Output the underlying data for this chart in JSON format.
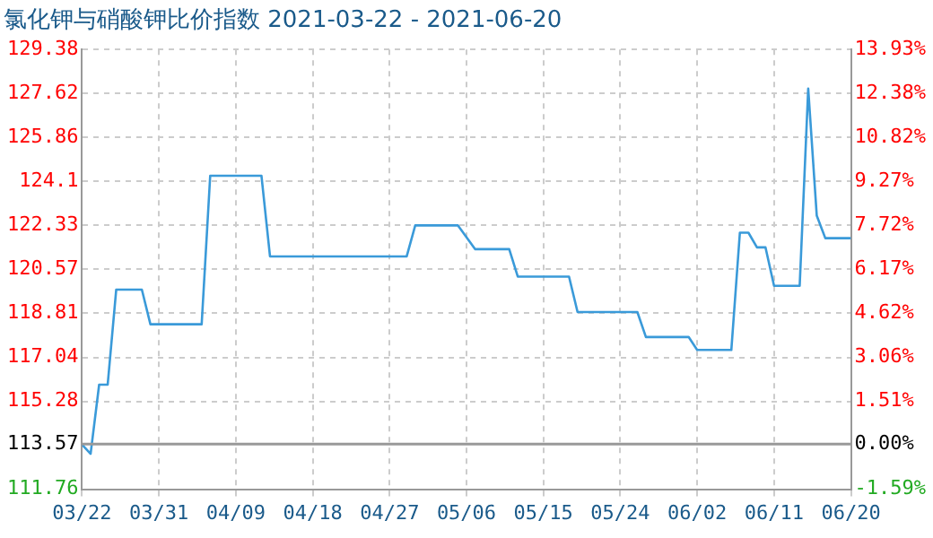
{
  "chart_data": {
    "type": "line",
    "title": "氯化钾与硝酸钾比价指数 2021-03-22 - 2021-06-20",
    "x": [
      "2021-03-22",
      "2021-03-23",
      "2021-03-24",
      "2021-03-25",
      "2021-03-26",
      "2021-03-29",
      "2021-03-30",
      "2021-04-05",
      "2021-04-06",
      "2021-04-12",
      "2021-04-13",
      "2021-04-29",
      "2021-04-30",
      "2021-05-05",
      "2021-05-07",
      "2021-05-11",
      "2021-05-12",
      "2021-05-18",
      "2021-05-19",
      "2021-05-26",
      "2021-05-27",
      "2021-06-01",
      "2021-06-02",
      "2021-06-06",
      "2021-06-07",
      "2021-06-08",
      "2021-06-09",
      "2021-06-10",
      "2021-06-11",
      "2021-06-14",
      "2021-06-15",
      "2021-06-16",
      "2021-06-17",
      "2021-06-20"
    ],
    "series": [
      {
        "color": "#3a9ad9",
        "values": [
          113.55,
          113.18,
          115.95,
          115.95,
          119.76,
          119.76,
          118.37,
          118.37,
          124.32,
          124.32,
          121.09,
          121.09,
          122.33,
          122.33,
          121.38,
          121.38,
          120.28,
          120.28,
          118.86,
          118.86,
          117.86,
          117.86,
          117.34,
          117.34,
          122.04,
          122.04,
          121.45,
          121.45,
          119.91,
          119.91,
          127.81,
          122.72,
          121.82,
          121.82
        ]
      }
    ],
    "xlim": [
      "2021-03-22",
      "2021-06-20"
    ],
    "xticks": [
      {
        "value": "2021-03-22",
        "label": "03/22"
      },
      {
        "value": "2021-03-31",
        "label": "03/31"
      },
      {
        "value": "2021-04-09",
        "label": "04/09"
      },
      {
        "value": "2021-04-18",
        "label": "04/18"
      },
      {
        "value": "2021-04-27",
        "label": "04/27"
      },
      {
        "value": "2021-05-06",
        "label": "05/06"
      },
      {
        "value": "2021-05-15",
        "label": "05/15"
      },
      {
        "value": "2021-05-24",
        "label": "05/24"
      },
      {
        "value": "2021-06-02",
        "label": "06/02"
      },
      {
        "value": "2021-06-11",
        "label": "06/11"
      },
      {
        "value": "2021-06-20",
        "label": "06/20"
      }
    ],
    "ylim": [
      111.76,
      129.38
    ],
    "yticks": [
      111.76,
      113.57,
      115.28,
      117.04,
      118.81,
      120.57,
      122.33,
      124.1,
      125.86,
      127.62,
      129.38
    ],
    "y2lim": [
      -1.59,
      13.93
    ],
    "y2ticks": [
      {
        "value": -1.59,
        "label": "-1.59%"
      },
      {
        "value": 0,
        "label": "0.00%"
      },
      {
        "value": 1.51,
        "label": "1.51%"
      },
      {
        "value": 3.06,
        "label": "3.06%"
      },
      {
        "value": 4.62,
        "label": "4.62%"
      },
      {
        "value": 6.17,
        "label": "6.17%"
      },
      {
        "value": 7.72,
        "label": "7.72%"
      },
      {
        "value": 9.27,
        "label": "9.27%"
      },
      {
        "value": 10.82,
        "label": "10.82%"
      },
      {
        "value": 12.38,
        "label": "12.38%"
      },
      {
        "value": 13.93,
        "label": "13.93%"
      }
    ],
    "ref_lines": [
      {
        "axis": "y",
        "value": 113.57,
        "color": "#999999"
      }
    ],
    "grid": true,
    "legend": false,
    "marker": "none",
    "line_style": "solid"
  }
}
